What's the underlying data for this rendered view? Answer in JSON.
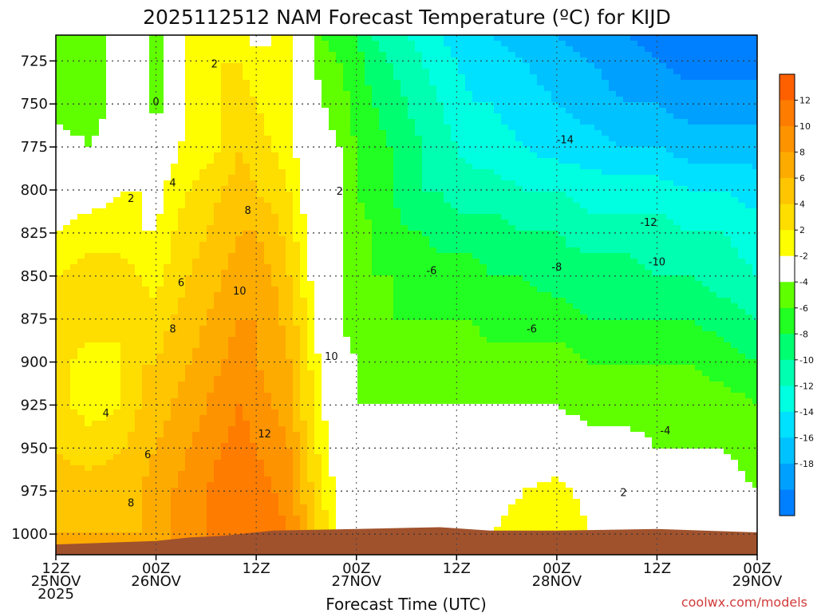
{
  "title": "2025112512 NAM Forecast Temperature (ºC) for KIJD",
  "xlabel": "Forecast Time (UTC)",
  "credit": "coolwx.com/models",
  "chart_data": {
    "type": "heatmap",
    "title": "2025112512 NAM Forecast Temperature (ºC) for KIJD",
    "xlabel": "Forecast Time (UTC)",
    "ylabel": "",
    "x_ticks": [
      {
        "l1": "12Z",
        "l2": "25NOV",
        "l3": "2025",
        "h": 0
      },
      {
        "l1": "00Z",
        "l2": "26NOV",
        "l3": "",
        "h": 12
      },
      {
        "l1": "12Z",
        "l2": "",
        "l3": "",
        "h": 24
      },
      {
        "l1": "00Z",
        "l2": "27NOV",
        "l3": "",
        "h": 36
      },
      {
        "l1": "12Z",
        "l2": "",
        "l3": "",
        "h": 48
      },
      {
        "l1": "00Z",
        "l2": "28NOV",
        "l3": "",
        "h": 60
      },
      {
        "l1": "12Z",
        "l2": "",
        "l3": "",
        "h": 72
      },
      {
        "l1": "00Z",
        "l2": "29NOV",
        "l3": "",
        "h": 84
      }
    ],
    "xlim_hours": [
      0,
      84
    ],
    "y_ticks": [
      725,
      750,
      775,
      800,
      825,
      850,
      875,
      900,
      925,
      950,
      975,
      1000
    ],
    "ylim_hpa": [
      1012,
      710
    ],
    "grid": true,
    "colorbar_labels": [
      12,
      10,
      8,
      6,
      4,
      2,
      -2,
      -4,
      -6,
      -8,
      -10,
      -12,
      -14,
      -16,
      -18
    ],
    "colorbar_colors": [
      "#fe6000",
      "#fe7c00",
      "#fe9300",
      "#feab00",
      "#fec500",
      "#fedd00",
      "#fefe00",
      "#ffffff",
      "#60ff00",
      "#22ff22",
      "#00ff70",
      "#00ffb0",
      "#00ffe0",
      "#00e0ff",
      "#00c2ff",
      "#00a0ff",
      "#0080ff"
    ],
    "levels": [
      -22,
      -18,
      -16,
      -14,
      -12,
      -10,
      -8,
      -6,
      -4,
      -2,
      2,
      4,
      6,
      8,
      10,
      12,
      16
    ],
    "hours": [
      0,
      4,
      8,
      10,
      12,
      14,
      16,
      18,
      20,
      22,
      24,
      26,
      28,
      30,
      32,
      34,
      36,
      38,
      40,
      42,
      44,
      46,
      48,
      50,
      52,
      56,
      60,
      64,
      68,
      72,
      76,
      80,
      84
    ],
    "pressures": [
      710,
      725,
      750,
      775,
      800,
      825,
      850,
      875,
      900,
      925,
      950,
      975,
      1000
    ],
    "temperature_c": [
      [
        -3,
        -3,
        -1,
        0,
        -3,
        0,
        3,
        3,
        3,
        3,
        1,
        2,
        2,
        -1,
        -4,
        -5,
        -6,
        -8,
        -9,
        -10,
        -11,
        -12,
        -13,
        -14,
        -14,
        -15,
        -16,
        -17,
        -18,
        -19,
        -20,
        -20,
        -20
      ],
      [
        -3,
        -3,
        -1,
        0,
        -3,
        0,
        3,
        3,
        4,
        4,
        3,
        2,
        2,
        -1,
        -3,
        -4,
        -5,
        -7,
        -8,
        -9,
        -10,
        -11,
        -12,
        -13,
        -13,
        -14,
        -15,
        -16,
        -17,
        -18,
        -19,
        -19,
        -19
      ],
      [
        -3,
        -3,
        -1,
        0,
        -3,
        0,
        3,
        3,
        4,
        5,
        4,
        3,
        3,
        0,
        -2,
        -3,
        -5,
        -6,
        -7,
        -8,
        -9,
        -10,
        -11,
        -12,
        -12,
        -13,
        -14,
        -15,
        -16,
        -16,
        -17,
        -17,
        -17
      ],
      [
        -1,
        -2,
        -1,
        0,
        -1,
        1,
        3,
        3,
        4,
        6,
        5,
        4,
        3,
        0,
        -1,
        -2,
        -4,
        -5,
        -6,
        -7,
        -8,
        -9,
        -10,
        -11,
        -11,
        -12,
        -13,
        -13,
        -14,
        -14,
        -15,
        -15,
        -15
      ],
      [
        1,
        1,
        2,
        2,
        1,
        3,
        4,
        5,
        6,
        7,
        6,
        5,
        4,
        1,
        -1,
        -2,
        -4,
        -5,
        -6,
        -7,
        -8,
        -8,
        -9,
        -9,
        -9,
        -10,
        -10,
        -11,
        -11,
        -11,
        -12,
        -12,
        -13
      ],
      [
        2,
        3,
        3,
        2,
        2,
        4,
        5,
        6,
        7,
        8,
        8,
        7,
        5,
        2,
        -1,
        -2,
        -3,
        -4,
        -5,
        -6,
        -6,
        -7,
        -7,
        -7,
        -7,
        -8,
        -8,
        -9,
        -9,
        -9,
        -10,
        -10,
        -11
      ],
      [
        4,
        5,
        5,
        4,
        3,
        5,
        6,
        7,
        8,
        9,
        9,
        8,
        6,
        3,
        -1,
        -2,
        -3,
        -4,
        -4,
        -5,
        -5,
        -5,
        -5,
        -5,
        -6,
        -6,
        -7,
        -7,
        -7,
        -8,
        -8,
        -9,
        -10
      ],
      [
        5,
        5,
        4,
        5,
        5,
        6,
        7,
        8,
        9,
        10,
        10,
        9,
        7,
        4,
        0,
        -2,
        -3,
        -3,
        -4,
        -4,
        -4,
        -4,
        -4,
        -4,
        -5,
        -5,
        -5,
        -6,
        -6,
        -6,
        -6,
        -7,
        -8
      ],
      [
        5,
        3,
        4,
        6,
        6,
        7,
        8,
        9,
        10,
        11,
        10,
        9,
        8,
        5,
        1,
        -1,
        -2,
        -3,
        -3,
        -3,
        -3,
        -3,
        -3,
        -3,
        -3,
        -3,
        -3,
        -4,
        -4,
        -4,
        -4,
        -5,
        -6
      ],
      [
        5,
        3,
        4,
        6,
        7,
        8,
        9,
        10,
        11,
        12,
        11,
        10,
        9,
        5,
        2,
        -1,
        -2,
        -2,
        -2,
        -2,
        -2,
        -2,
        -2,
        -2,
        -2,
        -2,
        -2,
        -3,
        -3,
        -3,
        -3,
        -3,
        -4
      ],
      [
        6,
        5,
        6,
        7,
        8,
        9,
        10,
        11,
        12,
        13,
        12,
        11,
        10,
        6,
        3,
        0,
        -1,
        -1,
        -1,
        -1,
        -1,
        -1,
        -1,
        -1,
        -1,
        0,
        0,
        -1,
        -1,
        -2,
        -2,
        -2,
        -3
      ],
      [
        7,
        7,
        7,
        8,
        9,
        10,
        11,
        12,
        13,
        14,
        13,
        12,
        11,
        7,
        4,
        1,
        0,
        1,
        1,
        1,
        1,
        1,
        0,
        0,
        1,
        2,
        3,
        1,
        -1,
        -2,
        -2,
        -1,
        -2
      ],
      [
        8,
        8,
        8,
        8,
        9,
        10,
        11,
        12,
        13,
        14,
        14,
        13,
        12,
        8,
        5,
        2,
        1,
        2,
        2,
        2,
        2,
        2,
        1,
        1,
        2,
        3,
        4,
        2,
        0,
        -1,
        -1,
        0,
        -1
      ]
    ],
    "surface_pressure_hpa": [
      [
        0,
        1006
      ],
      [
        12,
        1004
      ],
      [
        16,
        1002
      ],
      [
        20,
        1001
      ],
      [
        26,
        998
      ],
      [
        36,
        997
      ],
      [
        46,
        996
      ],
      [
        52,
        998
      ],
      [
        60,
        998
      ],
      [
        72,
        997
      ],
      [
        84,
        999
      ]
    ],
    "contour_labels": [
      {
        "t": "0",
        "h": 12,
        "p": 749
      },
      {
        "t": "2",
        "h": 19,
        "p": 727
      },
      {
        "t": "2",
        "h": 9,
        "p": 805
      },
      {
        "t": "4",
        "h": 14,
        "p": 796
      },
      {
        "t": "6",
        "h": 15,
        "p": 854
      },
      {
        "t": "8",
        "h": 23,
        "p": 812
      },
      {
        "t": "8",
        "h": 14,
        "p": 881
      },
      {
        "t": "10",
        "h": 22,
        "p": 859
      },
      {
        "t": "10",
        "h": 33,
        "p": 897
      },
      {
        "t": "12",
        "h": 25,
        "p": 942
      },
      {
        "t": "2",
        "h": 34,
        "p": 801
      },
      {
        "t": "4",
        "h": 6,
        "p": 930
      },
      {
        "t": "6",
        "h": 11,
        "p": 954
      },
      {
        "t": "8",
        "h": 9,
        "p": 982
      },
      {
        "t": "-6",
        "h": 45,
        "p": 847
      },
      {
        "t": "-8",
        "h": 60,
        "p": 845
      },
      {
        "t": "-6",
        "h": 57,
        "p": 881
      },
      {
        "t": "-10",
        "h": 72,
        "p": 842
      },
      {
        "t": "-12",
        "h": 71,
        "p": 819
      },
      {
        "t": "-14",
        "h": 61,
        "p": 771
      },
      {
        "t": "-4",
        "h": 73,
        "p": 940
      },
      {
        "t": "2",
        "h": 68,
        "p": 976
      }
    ]
  }
}
